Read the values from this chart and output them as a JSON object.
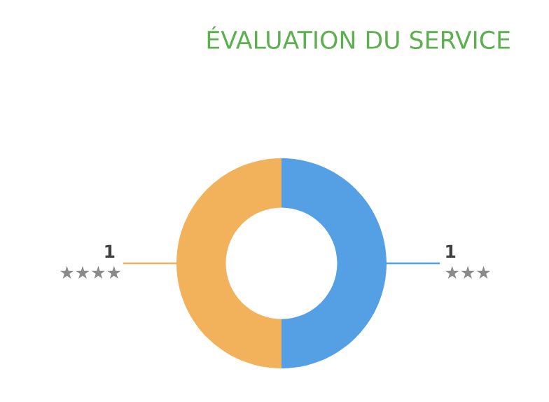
{
  "chart_data": {
    "type": "donut",
    "title": "ÉVALUATION DU SERVICE",
    "categories": [
      "★★★",
      "★★★★"
    ],
    "values": [
      1,
      1
    ],
    "colors": [
      "#559fe4",
      "#f2b25c"
    ],
    "data_labels": true,
    "legend": false
  }
}
